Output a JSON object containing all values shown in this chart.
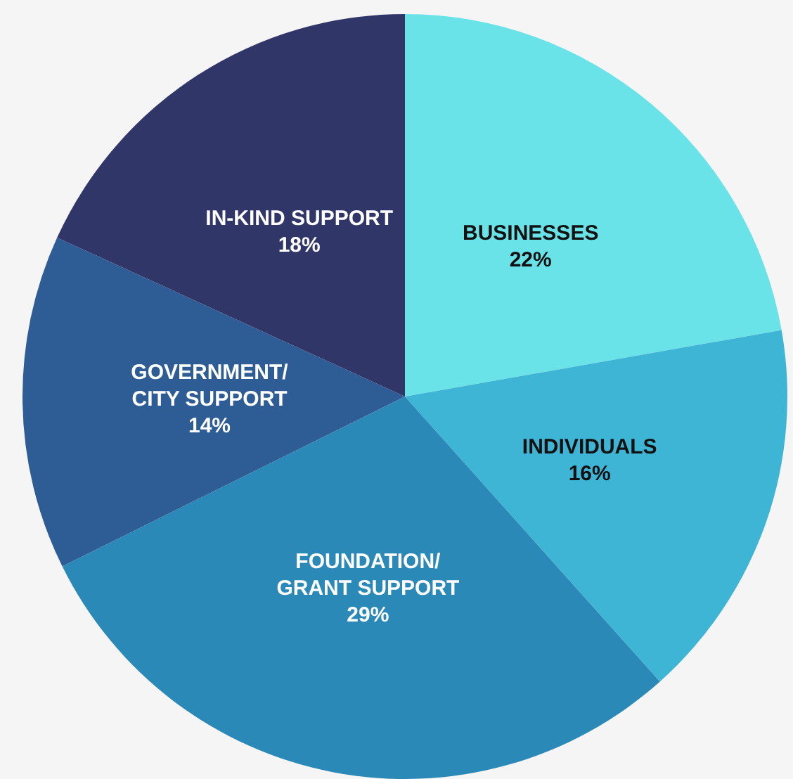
{
  "chart_data": {
    "type": "pie",
    "categories": [
      "BUSINESSES",
      "INDIVIDUALS",
      "FOUNDATION/ GRANT SUPPORT",
      "GOVERNMENT/ CITY SUPPORT",
      "IN-KIND SUPPORT"
    ],
    "values": [
      22,
      16,
      29,
      14,
      18
    ],
    "value_labels": [
      "22%",
      "16%",
      "29%",
      "14%",
      "18%"
    ],
    "colors": [
      "#6ae3e8",
      "#3fb5d6",
      "#2b89b8",
      "#2e5d96",
      "#313668"
    ],
    "legend": false
  }
}
